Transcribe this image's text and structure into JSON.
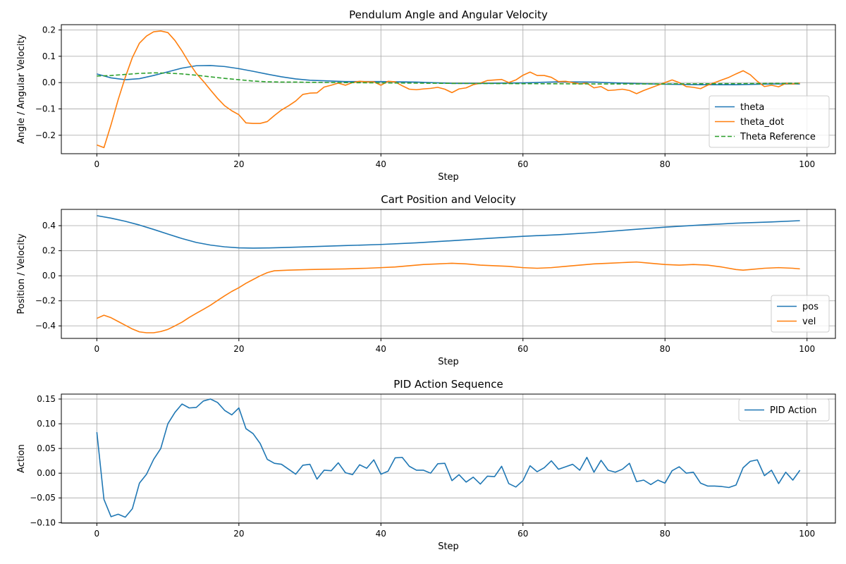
{
  "chart_data": [
    {
      "type": "line",
      "title": "Pendulum Angle and Angular Velocity",
      "xlabel": "Step",
      "ylabel": "Angle / Angular Velocity",
      "xlim": [
        -5,
        104
      ],
      "ylim": [
        -0.27,
        0.22
      ],
      "xticks": [
        0,
        20,
        40,
        60,
        80,
        100
      ],
      "xtick_labels": [
        "0",
        "20",
        "40",
        "60",
        "80",
        "100"
      ],
      "yticks": [
        -0.2,
        -0.1,
        0.0,
        0.1,
        0.2
      ],
      "ytick_labels": [
        "−0.2",
        "−0.1",
        "0.0",
        "0.1",
        "0.2"
      ],
      "grid": true,
      "legend_position": "lower-right",
      "series": [
        {
          "name": "theta",
          "color": "#1f77b4",
          "dashed": false,
          "x": [
            0,
            2,
            4,
            6,
            8,
            10,
            12,
            14,
            16,
            18,
            20,
            22,
            24,
            26,
            28,
            30,
            35,
            40,
            45,
            50,
            55,
            60,
            65,
            70,
            75,
            80,
            85,
            90,
            95,
            99
          ],
          "values": [
            0.033,
            0.018,
            0.011,
            0.015,
            0.027,
            0.041,
            0.055,
            0.064,
            0.065,
            0.061,
            0.053,
            0.043,
            0.032,
            0.022,
            0.014,
            0.009,
            0.004,
            0.004,
            0.002,
            -0.003,
            -0.003,
            -0.001,
            0.003,
            0.002,
            -0.003,
            -0.006,
            -0.008,
            -0.008,
            -0.005,
            -0.005
          ]
        },
        {
          "name": "theta_dot",
          "color": "#ff7f0e",
          "dashed": false,
          "x": [
            0,
            1,
            2,
            3,
            4,
            5,
            6,
            7,
            8,
            9,
            10,
            11,
            12,
            13,
            14,
            15,
            16,
            17,
            18,
            19,
            20,
            21,
            22,
            23,
            24,
            25,
            26,
            27,
            28,
            29,
            30,
            31,
            32,
            33,
            34,
            35,
            36,
            37,
            38,
            39,
            40,
            41,
            42,
            43,
            44,
            45,
            46,
            47,
            48,
            49,
            50,
            51,
            52,
            53,
            54,
            55,
            56,
            57,
            58,
            59,
            60,
            61,
            62,
            63,
            64,
            65,
            66,
            67,
            68,
            69,
            70,
            71,
            72,
            73,
            74,
            75,
            76,
            77,
            78,
            79,
            80,
            81,
            82,
            83,
            84,
            85,
            86,
            87,
            88,
            89,
            90,
            91,
            92,
            93,
            94,
            95,
            96,
            97,
            98,
            99
          ],
          "values": [
            -0.237,
            -0.247,
            -0.16,
            -0.065,
            0.02,
            0.095,
            0.15,
            0.177,
            0.193,
            0.196,
            0.19,
            0.16,
            0.12,
            0.075,
            0.035,
            0.005,
            -0.028,
            -0.06,
            -0.088,
            -0.107,
            -0.122,
            -0.153,
            -0.155,
            -0.155,
            -0.148,
            -0.125,
            -0.104,
            -0.088,
            -0.07,
            -0.045,
            -0.04,
            -0.039,
            -0.017,
            -0.01,
            -0.002,
            -0.01,
            0.0,
            0.005,
            0.003,
            0.003,
            -0.01,
            0.005,
            0.003,
            -0.012,
            -0.025,
            -0.027,
            -0.024,
            -0.022,
            -0.018,
            -0.025,
            -0.038,
            -0.024,
            -0.02,
            -0.008,
            -0.002,
            0.008,
            0.01,
            0.012,
            0.0,
            0.01,
            0.028,
            0.04,
            0.027,
            0.027,
            0.02,
            0.004,
            0.005,
            0.0,
            -0.005,
            -0.002,
            -0.02,
            -0.015,
            -0.03,
            -0.028,
            -0.025,
            -0.03,
            -0.042,
            -0.03,
            -0.02,
            -0.01,
            0.0,
            0.01,
            0.0,
            -0.015,
            -0.018,
            -0.023,
            -0.01,
            0.0,
            0.01,
            0.02,
            0.033,
            0.045,
            0.03,
            0.005,
            -0.015,
            -0.01,
            -0.016,
            -0.003,
            -0.005,
            -0.002
          ]
        },
        {
          "name": "Theta Reference",
          "color": "#2ca02c",
          "dashed": true,
          "x": [
            0,
            2,
            4,
            6,
            8,
            10,
            12,
            14,
            16,
            18,
            20,
            22,
            24,
            26,
            28,
            30,
            40,
            50,
            60,
            70,
            80,
            90,
            99
          ],
          "values": [
            0.025,
            0.027,
            0.031,
            0.035,
            0.037,
            0.036,
            0.033,
            0.028,
            0.022,
            0.016,
            0.011,
            0.006,
            0.003,
            0.002,
            0.002,
            0.001,
            -0.001,
            -0.003,
            -0.004,
            -0.005,
            -0.005,
            -0.004,
            -0.003
          ]
        }
      ]
    },
    {
      "type": "line",
      "title": "Cart Position and Velocity",
      "xlabel": "Step",
      "ylabel": "Position / Velocity",
      "xlim": [
        -5,
        104
      ],
      "ylim": [
        -0.5,
        0.53
      ],
      "xticks": [
        0,
        20,
        40,
        60,
        80,
        100
      ],
      "xtick_labels": [
        "0",
        "20",
        "40",
        "60",
        "80",
        "100"
      ],
      "yticks": [
        -0.4,
        -0.2,
        0.0,
        0.2,
        0.4
      ],
      "ytick_labels": [
        "−0.4",
        "−0.2",
        "0.0",
        "0.2",
        "0.4"
      ],
      "grid": true,
      "legend_position": "lower-right",
      "series": [
        {
          "name": "pos",
          "color": "#1f77b4",
          "dashed": false,
          "x": [
            0,
            2,
            4,
            6,
            8,
            10,
            12,
            14,
            16,
            18,
            20,
            22,
            24,
            26,
            30,
            35,
            40,
            45,
            50,
            55,
            60,
            65,
            70,
            75,
            80,
            85,
            90,
            95,
            99
          ],
          "values": [
            0.48,
            0.46,
            0.435,
            0.405,
            0.37,
            0.333,
            0.297,
            0.266,
            0.245,
            0.231,
            0.223,
            0.221,
            0.222,
            0.225,
            0.232,
            0.241,
            0.25,
            0.263,
            0.28,
            0.298,
            0.315,
            0.328,
            0.345,
            0.367,
            0.388,
            0.405,
            0.42,
            0.43,
            0.44
          ]
        },
        {
          "name": "vel",
          "color": "#ff7f0e",
          "dashed": false,
          "x": [
            0,
            1,
            2,
            3,
            4,
            5,
            6,
            7,
            8,
            9,
            10,
            11,
            12,
            13,
            14,
            15,
            16,
            17,
            18,
            19,
            20,
            21,
            22,
            23,
            24,
            25,
            27,
            30,
            32,
            35,
            38,
            40,
            42,
            44,
            46,
            48,
            50,
            52,
            54,
            56,
            58,
            60,
            62,
            64,
            66,
            68,
            70,
            72,
            74,
            76,
            78,
            80,
            82,
            84,
            86,
            88,
            90,
            91,
            92,
            94,
            96,
            98,
            99
          ],
          "values": [
            -0.34,
            -0.315,
            -0.335,
            -0.365,
            -0.395,
            -0.425,
            -0.448,
            -0.455,
            -0.455,
            -0.445,
            -0.428,
            -0.4,
            -0.37,
            -0.333,
            -0.3,
            -0.268,
            -0.235,
            -0.197,
            -0.16,
            -0.125,
            -0.095,
            -0.06,
            -0.03,
            0.0,
            0.025,
            0.04,
            0.045,
            0.05,
            0.052,
            0.055,
            0.06,
            0.065,
            0.07,
            0.08,
            0.09,
            0.095,
            0.1,
            0.095,
            0.085,
            0.08,
            0.075,
            0.065,
            0.06,
            0.065,
            0.075,
            0.085,
            0.095,
            0.1,
            0.105,
            0.11,
            0.1,
            0.09,
            0.085,
            0.09,
            0.085,
            0.07,
            0.05,
            0.045,
            0.05,
            0.06,
            0.065,
            0.06,
            0.055
          ]
        }
      ]
    },
    {
      "type": "line",
      "title": "PID Action Sequence",
      "xlabel": "Step",
      "ylabel": "Action",
      "xlim": [
        -5,
        104
      ],
      "ylim": [
        -0.101,
        0.16
      ],
      "xticks": [
        0,
        20,
        40,
        60,
        80,
        100
      ],
      "xtick_labels": [
        "0",
        "20",
        "40",
        "60",
        "80",
        "100"
      ],
      "yticks": [
        -0.1,
        -0.05,
        0.0,
        0.05,
        0.1,
        0.15
      ],
      "ytick_labels": [
        "−0.10",
        "−0.05",
        "0.00",
        "0.05",
        "0.10",
        "0.15"
      ],
      "grid": true,
      "legend_position": "upper-right",
      "series": [
        {
          "name": "PID Action",
          "color": "#1f77b4",
          "dashed": false,
          "x": [
            0,
            1,
            2,
            3,
            4,
            5,
            6,
            7,
            8,
            9,
            10,
            11,
            12,
            13,
            14,
            15,
            16,
            17,
            18,
            19,
            20,
            21,
            22,
            23,
            24,
            25,
            26,
            27,
            28,
            29,
            30,
            31,
            32,
            33,
            34,
            35,
            36,
            37,
            38,
            39,
            40,
            41,
            42,
            43,
            44,
            45,
            46,
            47,
            48,
            49,
            50,
            51,
            52,
            53,
            54,
            55,
            56,
            57,
            58,
            59,
            60,
            61,
            62,
            63,
            64,
            65,
            66,
            67,
            68,
            69,
            70,
            71,
            72,
            73,
            74,
            75,
            76,
            77,
            78,
            79,
            80,
            81,
            82,
            83,
            84,
            85,
            86,
            87,
            88,
            89,
            90,
            91,
            92,
            93,
            94,
            95,
            96,
            97,
            98,
            99
          ],
          "values": [
            0.083,
            -0.053,
            -0.088,
            -0.083,
            -0.089,
            -0.072,
            -0.02,
            -0.002,
            0.028,
            0.05,
            0.1,
            0.123,
            0.14,
            0.132,
            0.133,
            0.146,
            0.15,
            0.143,
            0.127,
            0.118,
            0.132,
            0.09,
            0.08,
            0.06,
            0.028,
            0.02,
            0.018,
            0.008,
            -0.002,
            0.016,
            0.018,
            -0.012,
            0.006,
            0.005,
            0.021,
            0.001,
            -0.003,
            0.017,
            0.01,
            0.027,
            -0.002,
            0.004,
            0.031,
            0.032,
            0.014,
            0.006,
            0.006,
            0.0,
            0.019,
            0.02,
            -0.015,
            -0.003,
            -0.018,
            -0.008,
            -0.022,
            -0.006,
            -0.007,
            0.014,
            -0.021,
            -0.028,
            -0.015,
            0.015,
            0.003,
            0.011,
            0.025,
            0.008,
            0.013,
            0.018,
            0.006,
            0.032,
            0.002,
            0.026,
            0.006,
            0.002,
            0.008,
            0.02,
            -0.017,
            -0.014,
            -0.023,
            -0.014,
            -0.02,
            0.005,
            0.013,
            0.0,
            0.002,
            -0.02,
            -0.026,
            -0.026,
            -0.027,
            -0.029,
            -0.024,
            0.011,
            0.024,
            0.027,
            -0.005,
            0.006,
            -0.021,
            0.002,
            -0.014,
            0.006
          ]
        }
      ]
    }
  ]
}
